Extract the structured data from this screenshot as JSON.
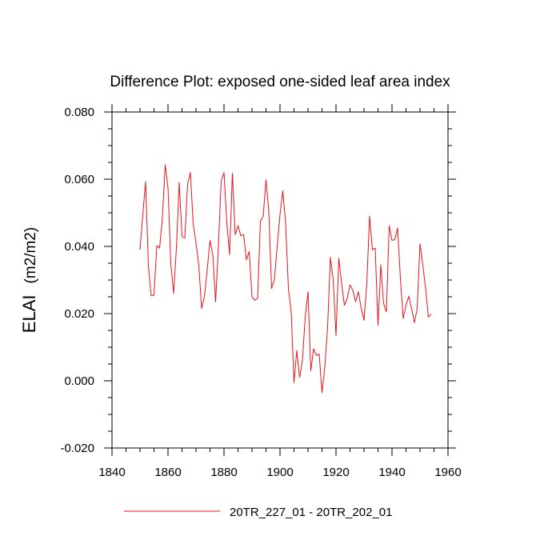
{
  "chart_data": {
    "type": "line",
    "title": "Difference Plot: exposed one-sided leaf area index",
    "xlabel": "",
    "ylabel": "ELAI",
    "ylabel_units": "(m2/m2)",
    "xlim": [
      1840,
      1960
    ],
    "ylim": [
      -0.02,
      0.08
    ],
    "x_ticks": [
      1840,
      1860,
      1880,
      1900,
      1920,
      1940,
      1960
    ],
    "y_ticks": [
      -0.02,
      0.0,
      0.02,
      0.04,
      0.06,
      0.08
    ],
    "y_tick_labels": [
      "-0.020",
      "0.000",
      "0.020",
      "0.040",
      "0.060",
      "0.080"
    ],
    "legend_position": "bottom-center",
    "series": [
      {
        "name": "20TR_227_01 - 20TR_202_01",
        "color": "#e8141c",
        "x_start": 1850,
        "x_step": 1,
        "values": [
          0.039,
          0.0495,
          0.0593,
          0.0342,
          0.0253,
          0.0255,
          0.0402,
          0.0395,
          0.0485,
          0.0643,
          0.0575,
          0.035,
          0.026,
          0.0395,
          0.059,
          0.043,
          0.0425,
          0.0585,
          0.062,
          0.0467,
          0.041,
          0.0345,
          0.0215,
          0.025,
          0.033,
          0.0418,
          0.0375,
          0.0235,
          0.04,
          0.0595,
          0.062,
          0.047,
          0.0375,
          0.0618,
          0.0435,
          0.0462,
          0.0432,
          0.0435,
          0.036,
          0.0385,
          0.025,
          0.024,
          0.0245,
          0.0475,
          0.049,
          0.0598,
          0.0505,
          0.0275,
          0.03,
          0.04,
          0.0495,
          0.0565,
          0.047,
          0.0275,
          0.0205,
          -0.0005,
          0.009,
          0.001,
          0.006,
          0.019,
          0.0265,
          0.003,
          0.0095,
          0.0075,
          0.008,
          -0.0035,
          0.004,
          0.016,
          0.0368,
          0.03,
          0.0135,
          0.0365,
          0.029,
          0.0225,
          0.0245,
          0.0285,
          0.027,
          0.0235,
          0.0265,
          0.0215,
          0.018,
          0.029,
          0.049,
          0.039,
          0.0395,
          0.0165,
          0.0345,
          0.023,
          0.0205,
          0.0462,
          0.0418,
          0.042,
          0.0455,
          0.0305,
          0.0185,
          0.0225,
          0.0252,
          0.0215,
          0.0173,
          0.0215,
          0.0408,
          0.0345,
          0.0275,
          0.019,
          0.0198
        ]
      }
    ]
  }
}
